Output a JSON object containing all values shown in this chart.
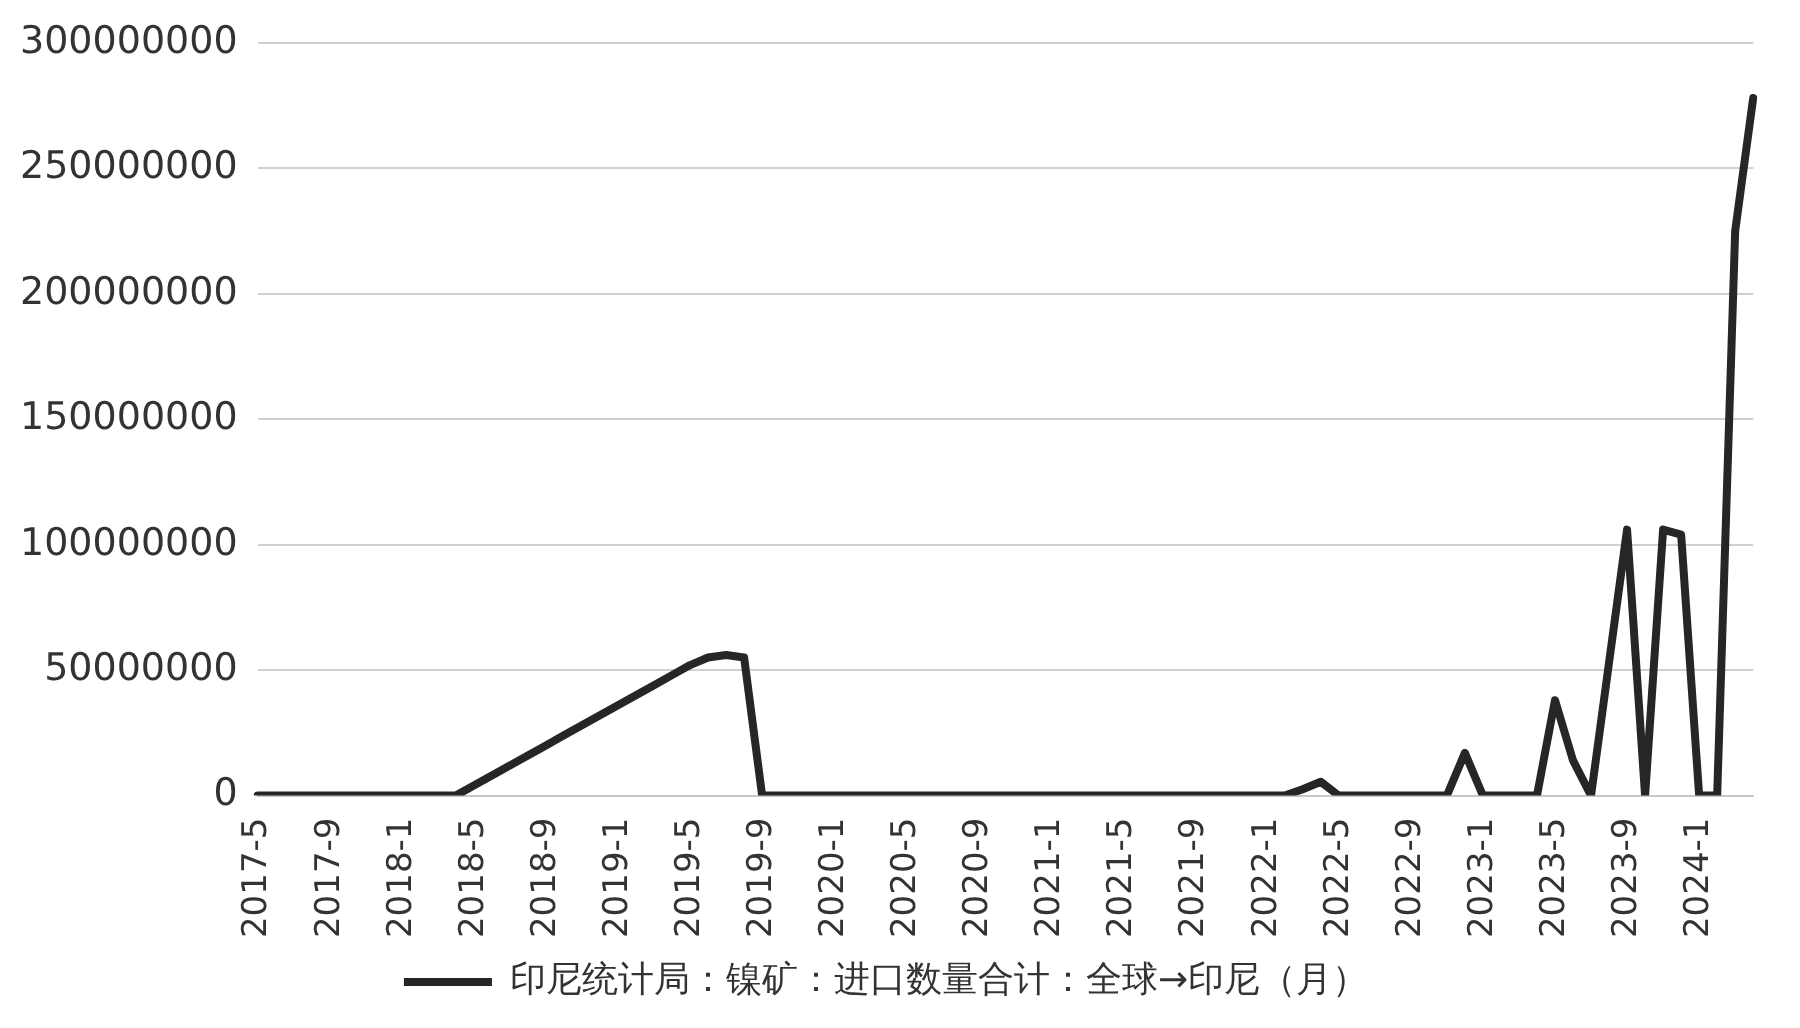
{
  "chart_data": {
    "type": "line",
    "categories": [
      "2017-5",
      null,
      null,
      null,
      "2017-9",
      null,
      null,
      null,
      "2018-1",
      null,
      null,
      null,
      "2018-5",
      null,
      null,
      null,
      "2018-9",
      null,
      null,
      null,
      "2019-1",
      null,
      null,
      null,
      "2019-5",
      null,
      null,
      null,
      "2019-9",
      null,
      null,
      null,
      "2020-1",
      null,
      null,
      null,
      "2020-5",
      null,
      null,
      null,
      "2020-9",
      null,
      null,
      null,
      "2021-1",
      null,
      null,
      null,
      "2021-5",
      null,
      null,
      null,
      "2021-9",
      null,
      null,
      null,
      "2022-1",
      null,
      null,
      null,
      "2022-5",
      null,
      null,
      null,
      "2022-9",
      null,
      null,
      null,
      "2023-1",
      null,
      null,
      null,
      "2023-5",
      null,
      null,
      null,
      "2023-9",
      null,
      null,
      null,
      "2024-1",
      null,
      null,
      null
    ],
    "series": [
      {
        "name": "印尼统计局：镍矿：进口数量合计：全球→印尼（月）",
        "color": "#262626",
        "values": [
          0,
          0,
          0,
          0,
          0,
          0,
          0,
          0,
          0,
          0,
          0,
          0,
          4000000,
          8000000,
          12000000,
          16000000,
          20000000,
          24000000,
          28000000,
          32000000,
          36000000,
          40000000,
          44000000,
          48000000,
          52000000,
          55000000,
          56000000,
          55000000,
          0,
          0,
          0,
          0,
          0,
          0,
          0,
          0,
          0,
          0,
          0,
          0,
          0,
          0,
          0,
          0,
          0,
          0,
          0,
          0,
          0,
          0,
          0,
          0,
          0,
          0,
          0,
          0,
          0,
          0,
          2500000,
          5500000,
          0,
          0,
          0,
          0,
          0,
          0,
          0,
          17000000,
          0,
          0,
          0,
          0,
          38000000,
          14000000,
          0,
          53000000,
          106000000,
          0,
          106000000,
          104000000,
          0,
          0,
          225000000,
          278000000
        ]
      }
    ],
    "ylim": [
      0,
      300000000
    ],
    "yticks": [
      0,
      50000000,
      100000000,
      150000000,
      200000000,
      250000000,
      300000000
    ],
    "grid": "y",
    "legend": "bottom",
    "marker": "none"
  }
}
